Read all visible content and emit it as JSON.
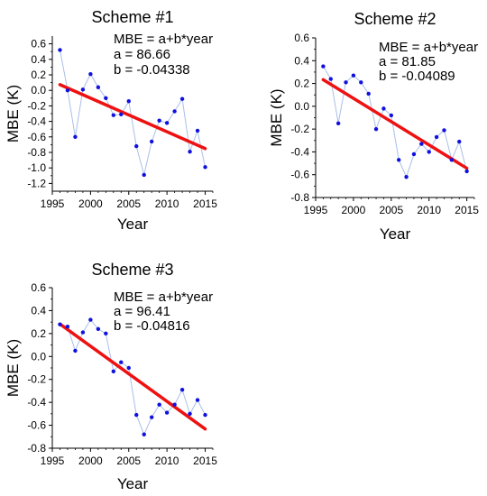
{
  "chart_data": [
    {
      "type": "scatter",
      "title": "Scheme #1",
      "xlabel": "Year",
      "ylabel": "MBE (K)",
      "xlim": [
        1995,
        2016
      ],
      "ylim": [
        -1.3,
        0.7
      ],
      "xticks": [
        1995,
        2000,
        2005,
        2010,
        2015
      ],
      "yticks": [
        0.6,
        0.4,
        0.2,
        0.0,
        -0.2,
        -0.4,
        -0.6,
        -0.8,
        -1.0,
        -1.2
      ],
      "ytick_labels": [
        "0.6",
        "0.4",
        "0.2",
        "0.0",
        "-0.2",
        "-0.4",
        "-0.6",
        "-0.8",
        "-1.0",
        "-1.2"
      ],
      "annotation": [
        "MBE = a+b*year",
        "a = 86.66",
        "b = -0.04338"
      ],
      "fit": {
        "a": 86.66,
        "b": -0.04338,
        "x_range": [
          1996,
          2015
        ]
      },
      "series": [
        {
          "x": [
            1996,
            1997,
            1998,
            1999,
            2000,
            2001,
            2002,
            2003,
            2004,
            2005,
            2006,
            2007,
            2008,
            2009,
            2010,
            2011,
            2012,
            2013,
            2014,
            2015
          ],
          "y": [
            0.52,
            0.0,
            -0.6,
            0.01,
            0.21,
            0.04,
            -0.1,
            -0.32,
            -0.31,
            -0.14,
            -0.72,
            -1.09,
            -0.66,
            -0.39,
            -0.42,
            -0.27,
            -0.11,
            -0.79,
            -0.52,
            -0.99
          ]
        }
      ]
    },
    {
      "type": "scatter",
      "title": "Scheme #2",
      "xlabel": "Year",
      "ylabel": "MBE (K)",
      "xlim": [
        1995,
        2016
      ],
      "ylim": [
        -0.8,
        0.6
      ],
      "xticks": [
        1995,
        2000,
        2005,
        2010,
        2015
      ],
      "yticks": [
        0.6,
        0.4,
        0.2,
        0.0,
        -0.2,
        -0.4,
        -0.6,
        -0.8
      ],
      "ytick_labels": [
        "0.6",
        "0.4",
        "0.2",
        "0.0",
        "-0.2",
        "-0.4",
        "-0.6",
        "-0.8"
      ],
      "annotation": [
        "MBE = a+b*year",
        "a = 81.85",
        "b = -0.04089"
      ],
      "fit": {
        "a": 81.85,
        "b": -0.04089,
        "x_range": [
          1996,
          2015
        ]
      },
      "series": [
        {
          "x": [
            1996,
            1997,
            1998,
            1999,
            2000,
            2001,
            2002,
            2003,
            2004,
            2005,
            2006,
            2007,
            2008,
            2009,
            2010,
            2011,
            2012,
            2013,
            2014,
            2015
          ],
          "y": [
            0.35,
            0.24,
            -0.15,
            0.21,
            0.27,
            0.21,
            0.11,
            -0.2,
            -0.02,
            -0.08,
            -0.47,
            -0.62,
            -0.42,
            -0.33,
            -0.4,
            -0.27,
            -0.21,
            -0.47,
            -0.31,
            -0.57
          ]
        }
      ]
    },
    {
      "type": "scatter",
      "title": "Scheme #3",
      "xlabel": "Year",
      "ylabel": "MBE (K)",
      "xlim": [
        1995,
        2016
      ],
      "ylim": [
        -0.8,
        0.6
      ],
      "xticks": [
        1995,
        2000,
        2005,
        2010,
        2015
      ],
      "yticks": [
        0.6,
        0.4,
        0.2,
        0.0,
        -0.2,
        -0.4,
        -0.6,
        -0.8
      ],
      "ytick_labels": [
        "0.6",
        "0.4",
        "0.2",
        "0.0",
        "-0.2",
        "-0.4",
        "-0.6",
        "-0.8"
      ],
      "annotation": [
        "MBE = a+b*year",
        "a = 96.41",
        "b = -0.04816"
      ],
      "fit": {
        "a": 96.41,
        "b": -0.04816,
        "x_range": [
          1996,
          2015
        ]
      },
      "series": [
        {
          "x": [
            1996,
            1997,
            1998,
            1999,
            2000,
            2001,
            2002,
            2003,
            2004,
            2005,
            2006,
            2007,
            2008,
            2009,
            2010,
            2011,
            2012,
            2013,
            2014,
            2015
          ],
          "y": [
            0.28,
            0.26,
            0.05,
            0.21,
            0.32,
            0.24,
            0.2,
            -0.13,
            -0.05,
            -0.1,
            -0.51,
            -0.68,
            -0.53,
            -0.42,
            -0.49,
            -0.42,
            -0.29,
            -0.5,
            -0.38,
            -0.51
          ]
        }
      ]
    }
  ],
  "colors": {
    "points": "#1010e0",
    "connector": "#a9bfe8",
    "fit": "#ee1111",
    "axis": "#000000"
  }
}
